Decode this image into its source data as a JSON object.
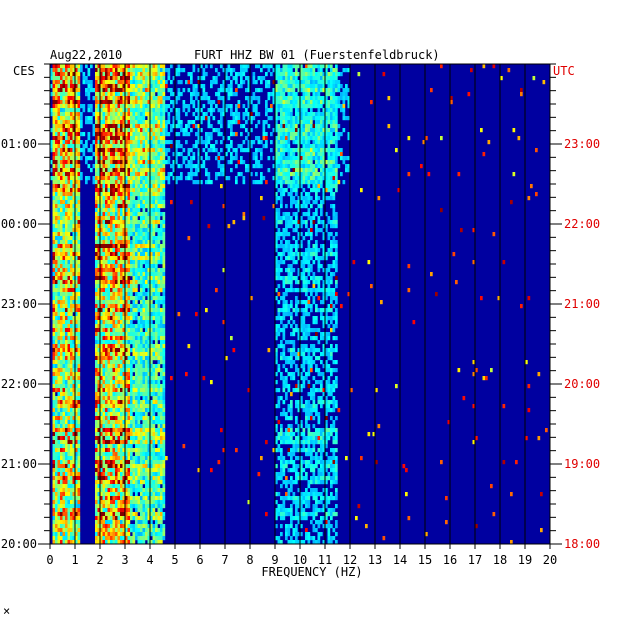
{
  "header": {
    "date": "Aug22,2010",
    "station": "FURT HHZ BW 01 (Fuerstenfeldbruck)"
  },
  "colors": {
    "utc_axis": "#e00000",
    "local_axis": "#000000",
    "background": "#0000a0"
  },
  "chart_data": {
    "type": "heatmap",
    "title": "FURT HHZ BW 01 (Fuerstenfeldbruck)",
    "xlabel": "FREQUENCY (HZ)",
    "xlim": [
      0,
      20
    ],
    "x_ticks": [
      "0",
      "1",
      "2",
      "3",
      "4",
      "5",
      "6",
      "7",
      "8",
      "9",
      "10",
      "11",
      "12",
      "13",
      "14",
      "15",
      "16",
      "17",
      "18",
      "19",
      "20"
    ],
    "left_axis": {
      "label": "CES",
      "ticks": [
        {
          "label": "01:00",
          "hours_from_bottom": 5
        },
        {
          "label": "00:00",
          "hours_from_bottom": 4
        },
        {
          "label": "23:00",
          "hours_from_bottom": 3
        },
        {
          "label": "22:00",
          "hours_from_bottom": 2
        },
        {
          "label": "21:00",
          "hours_from_bottom": 1
        },
        {
          "label": "20:00",
          "hours_from_bottom": 0
        }
      ]
    },
    "right_axis": {
      "label": "UTC",
      "ticks": [
        {
          "label": "23:00",
          "hours_from_bottom": 5
        },
        {
          "label": "22:00",
          "hours_from_bottom": 4
        },
        {
          "label": "21:00",
          "hours_from_bottom": 3
        },
        {
          "label": "20:00",
          "hours_from_bottom": 2
        },
        {
          "label": "19:00",
          "hours_from_bottom": 1
        },
        {
          "label": "18:00",
          "hours_from_bottom": 0
        }
      ]
    },
    "hours_span": 6,
    "minor_ticks_per_hour": 6,
    "energy_bands": [
      {
        "f_min": 0.1,
        "f_max": 1.2,
        "strength": 0.75
      },
      {
        "f_min": 1.8,
        "f_max": 3.2,
        "strength": 0.85
      },
      {
        "f_min": 3.2,
        "f_max": 4.6,
        "strength": 0.45
      },
      {
        "f_min": 9.0,
        "f_max": 11.5,
        "strength": 0.2
      }
    ],
    "legend": "none",
    "grid": "vertical lines at every 1 Hz"
  }
}
